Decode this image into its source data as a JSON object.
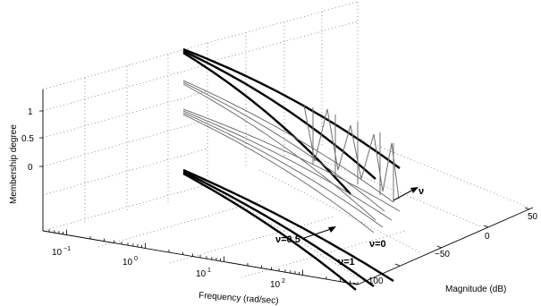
{
  "chart_data": {
    "type": "line",
    "view": "3d",
    "axes": {
      "x": {
        "label": "Frequency (rad/sec)",
        "scale": "log",
        "range": [
          0.05,
          500
        ],
        "tick_labels": [
          {
            "base": "10",
            "exp": "−1"
          },
          {
            "base": "10",
            "exp": "0"
          },
          {
            "base": "10",
            "exp": "1"
          },
          {
            "base": "10",
            "exp": "2"
          }
        ]
      },
      "y": {
        "label": "Magnitude (dB)",
        "range": [
          -110,
          50
        ],
        "tick_labels": [
          "−100",
          "−50",
          "0",
          "50"
        ]
      },
      "z": {
        "label": "Membership degree",
        "tick_labels": [
          "0",
          "0.5",
          "1"
        ]
      }
    },
    "annotations": {
      "nu_axis": "ν",
      "curve_labels": [
        "ν=0.5",
        "ν=0",
        "ν=1"
      ]
    },
    "grid": true
  }
}
